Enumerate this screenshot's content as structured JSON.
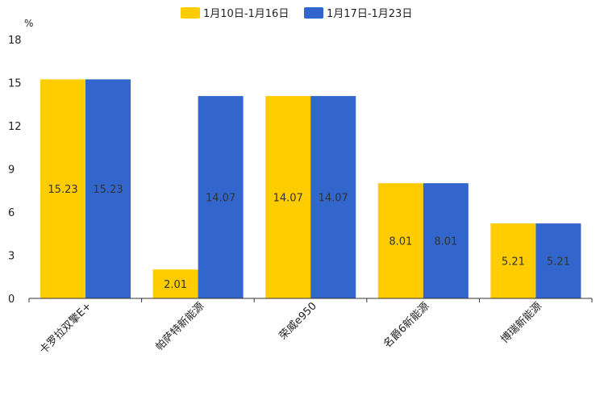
{
  "chart_data": {
    "type": "bar",
    "title": "",
    "xlabel": "",
    "ylabel": "",
    "y_unit": "%",
    "ylim": [
      0,
      18
    ],
    "yticks": [
      0,
      3,
      6,
      9,
      12,
      15,
      18
    ],
    "grid": false,
    "legend_position": "top",
    "categories": [
      "卡罗拉双擎E+",
      "帕萨特新能源",
      "荣威e950",
      "名爵6新能源",
      "博瑞新能源"
    ],
    "series": [
      {
        "name": "1月10日-1月16日",
        "color": "#FFCC00",
        "values": [
          15.23,
          2.01,
          14.07,
          8.01,
          5.21
        ]
      },
      {
        "name": "1月17日-1月23日",
        "color": "#3366CC",
        "values": [
          15.23,
          14.07,
          14.07,
          8.01,
          5.21
        ]
      }
    ]
  }
}
